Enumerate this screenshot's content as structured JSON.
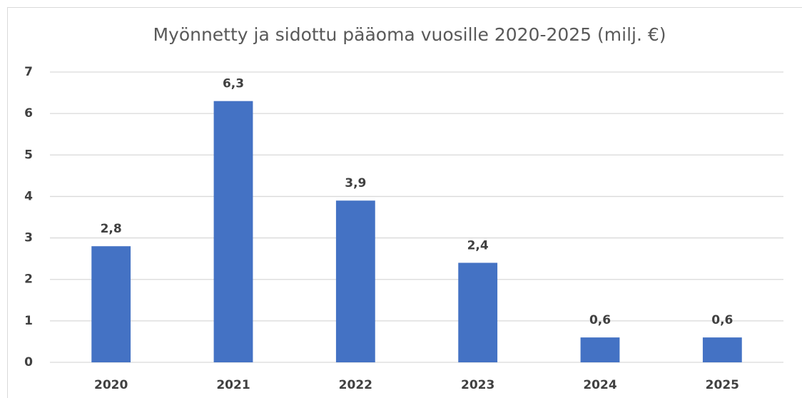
{
  "chart_data": {
    "type": "bar",
    "title": "Myönnetty ja sidottu pääoma vuosille 2020-2025 (milj. €)",
    "categories": [
      "2020",
      "2021",
      "2022",
      "2023",
      "2024",
      "2025"
    ],
    "values": [
      2.8,
      6.3,
      3.9,
      2.4,
      0.6,
      0.6
    ],
    "value_labels": [
      "2,8",
      "6,3",
      "3,9",
      "2,4",
      "0,6",
      "0,6"
    ],
    "color": "#4472c4",
    "ylim": [
      0,
      7
    ],
    "yticks": [
      0,
      1,
      2,
      3,
      4,
      5,
      6,
      7
    ],
    "grid": true
  }
}
